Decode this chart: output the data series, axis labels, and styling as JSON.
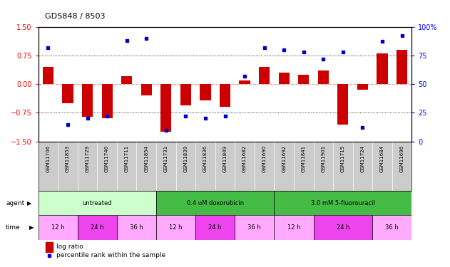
{
  "title": "GDS848 / 8503",
  "samples": [
    "GSM11706",
    "GSM11853",
    "GSM11729",
    "GSM11746",
    "GSM11711",
    "GSM11854",
    "GSM11731",
    "GSM11839",
    "GSM11836",
    "GSM11849",
    "GSM11682",
    "GSM11690",
    "GSM11692",
    "GSM11841",
    "GSM11901",
    "GSM11715",
    "GSM11724",
    "GSM11684",
    "GSM11696"
  ],
  "log_ratio": [
    0.45,
    -0.5,
    -0.85,
    -0.9,
    0.2,
    -0.3,
    -1.25,
    -0.55,
    -0.42,
    -0.6,
    0.1,
    0.45,
    0.3,
    0.25,
    0.35,
    -1.05,
    -0.15,
    0.8,
    0.9
  ],
  "percentile": [
    82,
    15,
    20,
    22,
    88,
    90,
    10,
    22,
    20,
    22,
    57,
    82,
    80,
    78,
    72,
    78,
    12,
    87,
    92
  ],
  "ylim_left": [
    -1.5,
    1.5
  ],
  "ylim_right": [
    0,
    100
  ],
  "yticks_left": [
    -1.5,
    -0.75,
    0,
    0.75,
    1.5
  ],
  "yticks_right": [
    0,
    25,
    50,
    75,
    100
  ],
  "agents": [
    {
      "label": "untreated",
      "start": 0,
      "end": 6,
      "color": "#ccffcc"
    },
    {
      "label": "0.4 uM doxorubicin",
      "start": 6,
      "end": 12,
      "color": "#44bb44"
    },
    {
      "label": "3.0 mM 5-fluorouracil",
      "start": 12,
      "end": 19,
      "color": "#44bb44"
    }
  ],
  "times": [
    {
      "label": "12 h",
      "start": 0,
      "end": 2,
      "color": "#ffaaff"
    },
    {
      "label": "24 h",
      "start": 2,
      "end": 4,
      "color": "#ee44ee"
    },
    {
      "label": "36 h",
      "start": 4,
      "end": 6,
      "color": "#ffaaff"
    },
    {
      "label": "12 h",
      "start": 6,
      "end": 8,
      "color": "#ffaaff"
    },
    {
      "label": "24 h",
      "start": 8,
      "end": 10,
      "color": "#ee44ee"
    },
    {
      "label": "36 h",
      "start": 10,
      "end": 12,
      "color": "#ffaaff"
    },
    {
      "label": "12 h",
      "start": 12,
      "end": 14,
      "color": "#ffaaff"
    },
    {
      "label": "24 h",
      "start": 14,
      "end": 17,
      "color": "#ee44ee"
    },
    {
      "label": "36 h",
      "start": 17,
      "end": 19,
      "color": "#ffaaff"
    }
  ],
  "bar_color": "#cc0000",
  "dot_color": "#0000cc",
  "zero_line_color": "#ff9999",
  "dot_line_color": "#aaaaaa",
  "bg_color": "#ffffff",
  "sample_bg_color": "#cccccc",
  "legend_red": "log ratio",
  "legend_blue": "percentile rank within the sample",
  "bar_width": 0.55
}
